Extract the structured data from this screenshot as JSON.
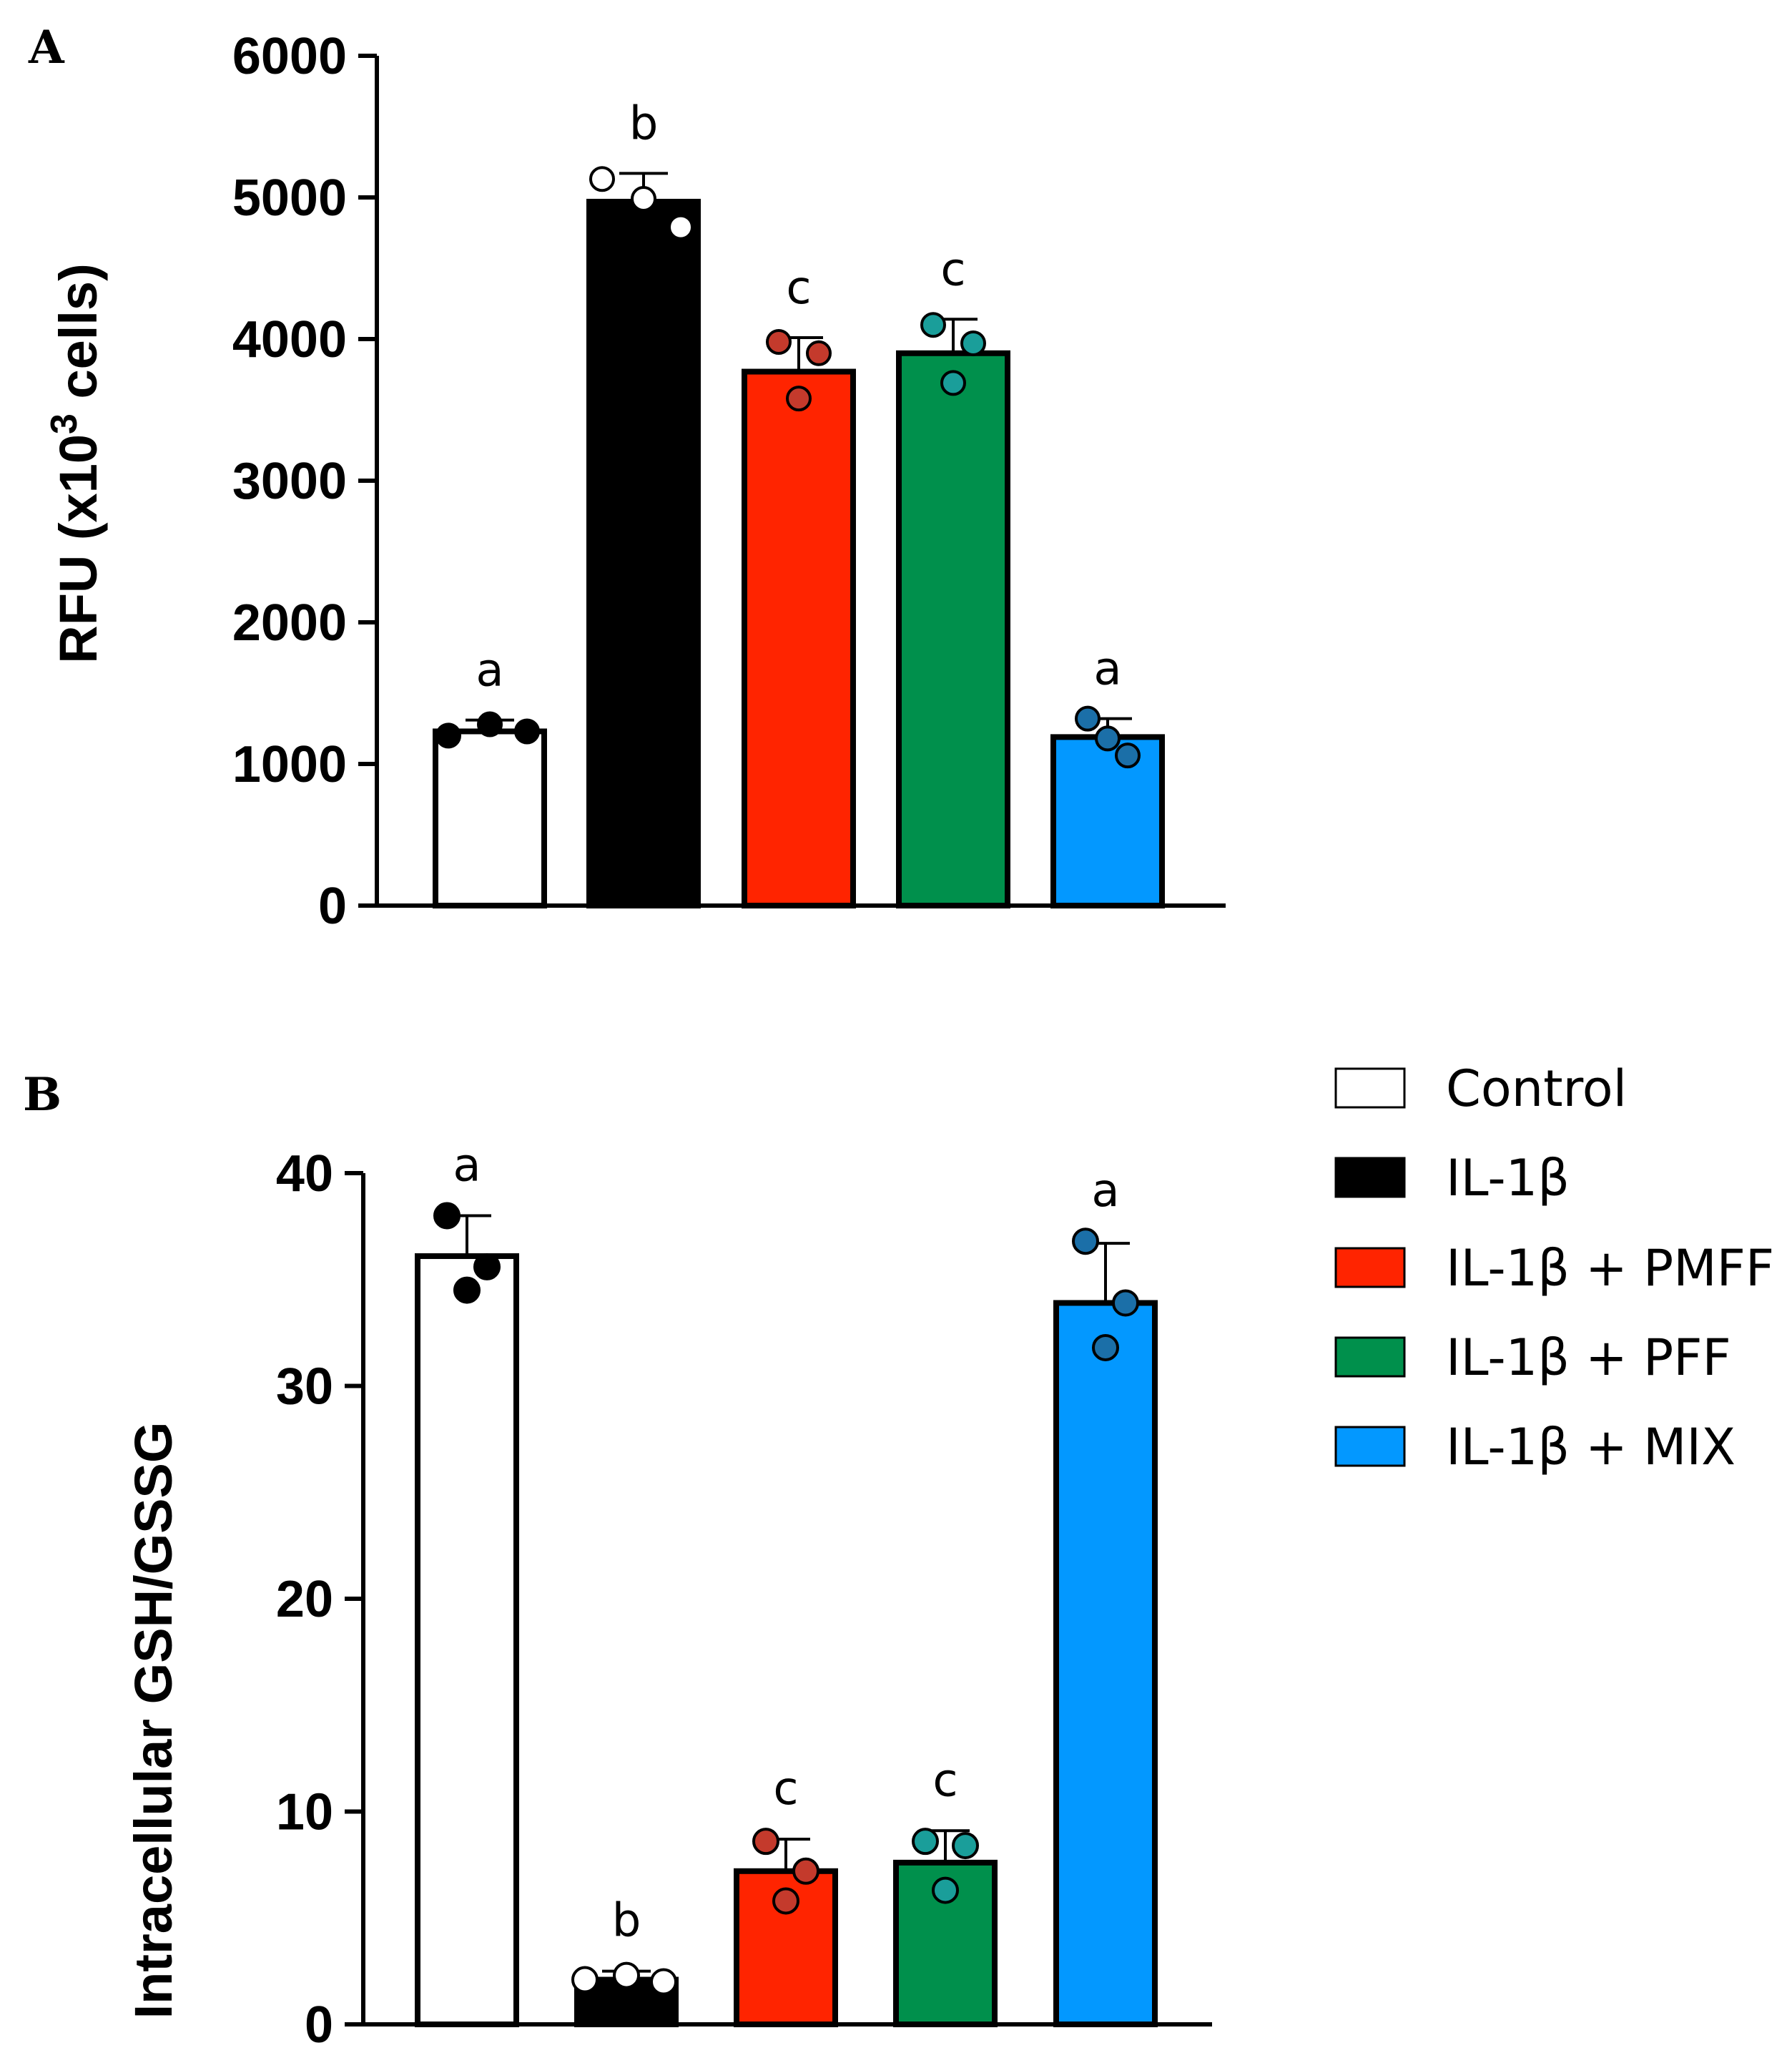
{
  "chart_data": [
    {
      "type": "bar",
      "panel": "A",
      "title": "",
      "ylabel": "RFU (x10",
      "ylabel_sup": "3",
      "ylabel_end": " cells)",
      "xlabel": "",
      "ylim": [
        0,
        6000
      ],
      "yticks": [
        0,
        1000,
        2000,
        3000,
        4000,
        5000,
        6000
      ],
      "ytick_labels": [
        "0",
        "1000",
        "2000",
        "3000",
        "4000",
        "5000",
        "6000"
      ],
      "categories": [
        "Control",
        "IL-1β",
        "IL-1β + PMFF",
        "IL-1β + PFF",
        "IL-1β + MIX"
      ],
      "values": [
        1230,
        4970,
        3770,
        3900,
        1190
      ],
      "errors": [
        80,
        200,
        240,
        240,
        130
      ],
      "significance": [
        "a",
        "b",
        "c",
        "c",
        "a"
      ],
      "points": [
        [
          1200,
          1280,
          1230
        ],
        [
          5130,
          4990,
          4790
        ],
        [
          3980,
          3900,
          3580
        ],
        [
          4100,
          3970,
          3690
        ],
        [
          1320,
          1060,
          1180
        ]
      ]
    },
    {
      "type": "bar",
      "panel": "B",
      "title": "",
      "ylabel": "Intracellular GSH/GSSG",
      "xlabel": "",
      "ylim": [
        0,
        40
      ],
      "yticks": [
        0,
        10,
        20,
        30,
        40
      ],
      "ytick_labels": [
        "0",
        "10",
        "20",
        "30",
        "40"
      ],
      "categories": [
        "Control",
        "IL-1β",
        "IL-1β + PMFF",
        "IL-1β + PFF",
        "IL-1β + MIX"
      ],
      "values": [
        36.1,
        2.1,
        7.2,
        7.6,
        33.9
      ],
      "errors": [
        1.9,
        0.4,
        1.5,
        1.5,
        2.8
      ],
      "significance": [
        "a",
        "b",
        "c",
        "c",
        "a"
      ],
      "points": [
        [
          38.0,
          35.6,
          34.5
        ],
        [
          2.1,
          2.3,
          2.0
        ],
        [
          8.6,
          7.2,
          5.8
        ],
        [
          8.6,
          8.4,
          6.3
        ],
        [
          36.8,
          33.9,
          31.8
        ]
      ]
    }
  ],
  "panels": {
    "a": "A",
    "b": "B"
  },
  "legend": [
    {
      "label": "Control",
      "color": "#ffffff"
    },
    {
      "label": "IL-1β",
      "color": "#000000"
    },
    {
      "label": "IL-1β + PMFF",
      "color": "#ff2400"
    },
    {
      "label": "IL-1β + PFF",
      "color": "#00904c"
    },
    {
      "label": "IL-1β + MIX",
      "color": "#0398ff"
    }
  ],
  "colors": {
    "bars": [
      "#ffffff",
      "#000000",
      "#ff2400",
      "#00904c",
      "#0398ff"
    ],
    "points": [
      "#000000",
      "#ffffff",
      "#c43a2c",
      "#1a9e9a",
      "#1b6fa8"
    ]
  }
}
